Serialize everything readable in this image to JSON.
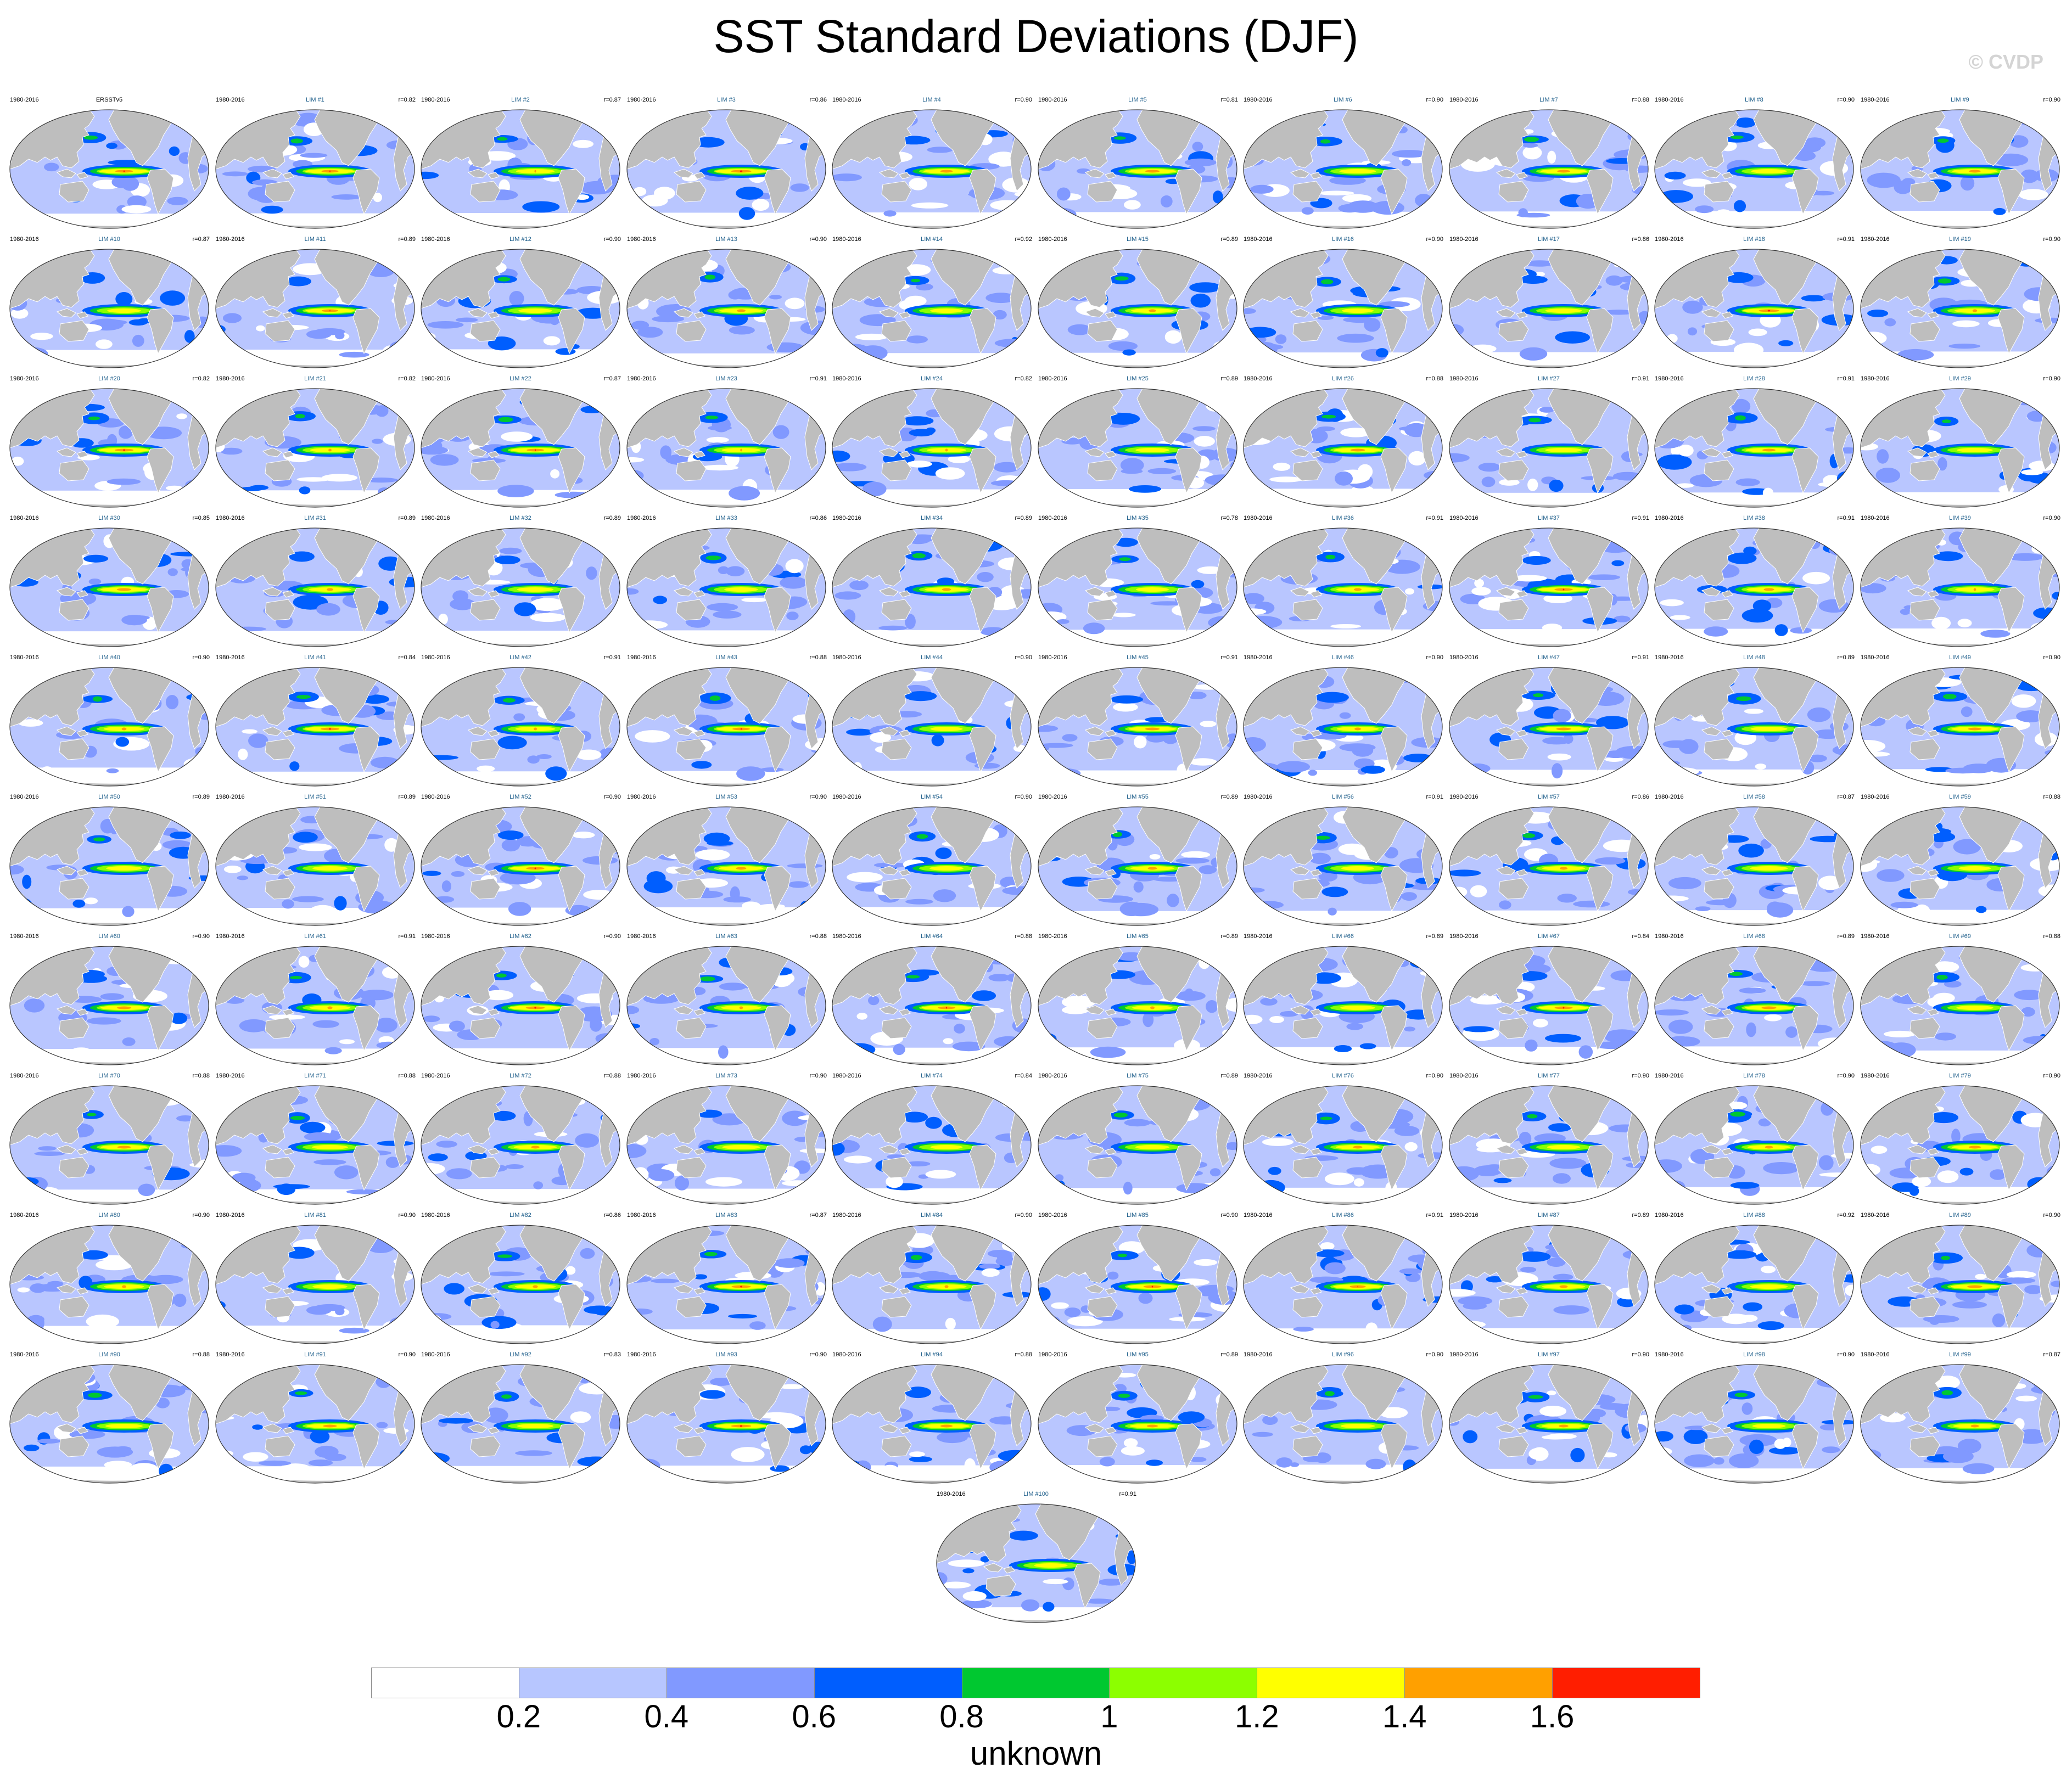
{
  "title": "SST Standard Deviations (DJF)",
  "copyright": "© CVDP",
  "units": "unknown",
  "period": "1980-2016",
  "observation": {
    "name": "ERSSTv5",
    "r": ""
  },
  "colors": {
    "ocean_background": "#b9c6ff",
    "land": "#bebebe",
    "coastline": "#ffffff",
    "label_blue": "#1f5f8b"
  },
  "colorbar": {
    "levels": [
      0.2,
      0.4,
      0.6,
      0.8,
      1,
      1.2,
      1.4,
      1.6
    ],
    "tick_labels": [
      "0.2",
      "0.4",
      "0.6",
      "0.8",
      "1",
      "1.2",
      "1.4",
      "1.6"
    ],
    "colors": [
      "#ffffff",
      "#b7c6ff",
      "#8199ff",
      "#005efe",
      "#00c830",
      "#8cff00",
      "#ffff00",
      "#ffa000",
      "#ff1e00"
    ]
  },
  "members": [
    {
      "name": "LIM #1",
      "r": "r=0.82"
    },
    {
      "name": "LIM #2",
      "r": "r=0.87"
    },
    {
      "name": "LIM #3",
      "r": "r=0.86"
    },
    {
      "name": "LIM #4",
      "r": "r=0.90"
    },
    {
      "name": "LIM #5",
      "r": "r=0.81"
    },
    {
      "name": "LIM #6",
      "r": "r=0.90"
    },
    {
      "name": "LIM #7",
      "r": "r=0.88"
    },
    {
      "name": "LIM #8",
      "r": "r=0.90"
    },
    {
      "name": "LIM #9",
      "r": "r=0.90"
    },
    {
      "name": "LIM #10",
      "r": "r=0.87"
    },
    {
      "name": "LIM #11",
      "r": "r=0.89"
    },
    {
      "name": "LIM #12",
      "r": "r=0.90"
    },
    {
      "name": "LIM #13",
      "r": "r=0.90"
    },
    {
      "name": "LIM #14",
      "r": "r=0.92"
    },
    {
      "name": "LIM #15",
      "r": "r=0.89"
    },
    {
      "name": "LIM #16",
      "r": "r=0.90"
    },
    {
      "name": "LIM #17",
      "r": "r=0.86"
    },
    {
      "name": "LIM #18",
      "r": "r=0.91"
    },
    {
      "name": "LIM #19",
      "r": "r=0.90"
    },
    {
      "name": "LIM #20",
      "r": "r=0.82"
    },
    {
      "name": "LIM #21",
      "r": "r=0.82"
    },
    {
      "name": "LIM #22",
      "r": "r=0.87"
    },
    {
      "name": "LIM #23",
      "r": "r=0.91"
    },
    {
      "name": "LIM #24",
      "r": "r=0.82"
    },
    {
      "name": "LIM #25",
      "r": "r=0.89"
    },
    {
      "name": "LIM #26",
      "r": "r=0.88"
    },
    {
      "name": "LIM #27",
      "r": "r=0.91"
    },
    {
      "name": "LIM #28",
      "r": "r=0.91"
    },
    {
      "name": "LIM #29",
      "r": "r=0.90"
    },
    {
      "name": "LIM #30",
      "r": "r=0.85"
    },
    {
      "name": "LIM #31",
      "r": "r=0.89"
    },
    {
      "name": "LIM #32",
      "r": "r=0.89"
    },
    {
      "name": "LIM #33",
      "r": "r=0.86"
    },
    {
      "name": "LIM #34",
      "r": "r=0.89"
    },
    {
      "name": "LIM #35",
      "r": "r=0.78"
    },
    {
      "name": "LIM #36",
      "r": "r=0.91"
    },
    {
      "name": "LIM #37",
      "r": "r=0.91"
    },
    {
      "name": "LIM #38",
      "r": "r=0.91"
    },
    {
      "name": "LIM #39",
      "r": "r=0.90"
    },
    {
      "name": "LIM #40",
      "r": "r=0.90"
    },
    {
      "name": "LIM #41",
      "r": "r=0.84"
    },
    {
      "name": "LIM #42",
      "r": "r=0.91"
    },
    {
      "name": "LIM #43",
      "r": "r=0.88"
    },
    {
      "name": "LIM #44",
      "r": "r=0.90"
    },
    {
      "name": "LIM #45",
      "r": "r=0.91"
    },
    {
      "name": "LIM #46",
      "r": "r=0.90"
    },
    {
      "name": "LIM #47",
      "r": "r=0.91"
    },
    {
      "name": "LIM #48",
      "r": "r=0.89"
    },
    {
      "name": "LIM #49",
      "r": "r=0.90"
    },
    {
      "name": "LIM #50",
      "r": "r=0.89"
    },
    {
      "name": "LIM #51",
      "r": "r=0.89"
    },
    {
      "name": "LIM #52",
      "r": "r=0.90"
    },
    {
      "name": "LIM #53",
      "r": "r=0.90"
    },
    {
      "name": "LIM #54",
      "r": "r=0.90"
    },
    {
      "name": "LIM #55",
      "r": "r=0.89"
    },
    {
      "name": "LIM #56",
      "r": "r=0.91"
    },
    {
      "name": "LIM #57",
      "r": "r=0.86"
    },
    {
      "name": "LIM #58",
      "r": "r=0.87"
    },
    {
      "name": "LIM #59",
      "r": "r=0.88"
    },
    {
      "name": "LIM #60",
      "r": "r=0.90"
    },
    {
      "name": "LIM #61",
      "r": "r=0.91"
    },
    {
      "name": "LIM #62",
      "r": "r=0.90"
    },
    {
      "name": "LIM #63",
      "r": "r=0.88"
    },
    {
      "name": "LIM #64",
      "r": "r=0.88"
    },
    {
      "name": "LIM #65",
      "r": "r=0.89"
    },
    {
      "name": "LIM #66",
      "r": "r=0.89"
    },
    {
      "name": "LIM #67",
      "r": "r=0.84"
    },
    {
      "name": "LIM #68",
      "r": "r=0.89"
    },
    {
      "name": "LIM #69",
      "r": "r=0.88"
    },
    {
      "name": "LIM #70",
      "r": "r=0.88"
    },
    {
      "name": "LIM #71",
      "r": "r=0.88"
    },
    {
      "name": "LIM #72",
      "r": "r=0.88"
    },
    {
      "name": "LIM #73",
      "r": "r=0.90"
    },
    {
      "name": "LIM #74",
      "r": "r=0.84"
    },
    {
      "name": "LIM #75",
      "r": "r=0.89"
    },
    {
      "name": "LIM #76",
      "r": "r=0.90"
    },
    {
      "name": "LIM #77",
      "r": "r=0.90"
    },
    {
      "name": "LIM #78",
      "r": "r=0.90"
    },
    {
      "name": "LIM #79",
      "r": "r=0.90"
    },
    {
      "name": "LIM #80",
      "r": "r=0.90"
    },
    {
      "name": "LIM #81",
      "r": "r=0.90"
    },
    {
      "name": "LIM #82",
      "r": "r=0.86"
    },
    {
      "name": "LIM #83",
      "r": "r=0.87"
    },
    {
      "name": "LIM #84",
      "r": "r=0.90"
    },
    {
      "name": "LIM #85",
      "r": "r=0.90"
    },
    {
      "name": "LIM #86",
      "r": "r=0.91"
    },
    {
      "name": "LIM #87",
      "r": "r=0.89"
    },
    {
      "name": "LIM #88",
      "r": "r=0.92"
    },
    {
      "name": "LIM #89",
      "r": "r=0.90"
    },
    {
      "name": "LIM #90",
      "r": "r=0.88"
    },
    {
      "name": "LIM #91",
      "r": "r=0.90"
    },
    {
      "name": "LIM #92",
      "r": "r=0.83"
    },
    {
      "name": "LIM #93",
      "r": "r=0.90"
    },
    {
      "name": "LIM #94",
      "r": "r=0.88"
    },
    {
      "name": "LIM #95",
      "r": "r=0.89"
    },
    {
      "name": "LIM #96",
      "r": "r=0.90"
    },
    {
      "name": "LIM #97",
      "r": "r=0.90"
    },
    {
      "name": "LIM #98",
      "r": "r=0.90"
    },
    {
      "name": "LIM #99",
      "r": "r=0.87"
    },
    {
      "name": "LIM #100",
      "r": "r=0.91"
    }
  ]
}
